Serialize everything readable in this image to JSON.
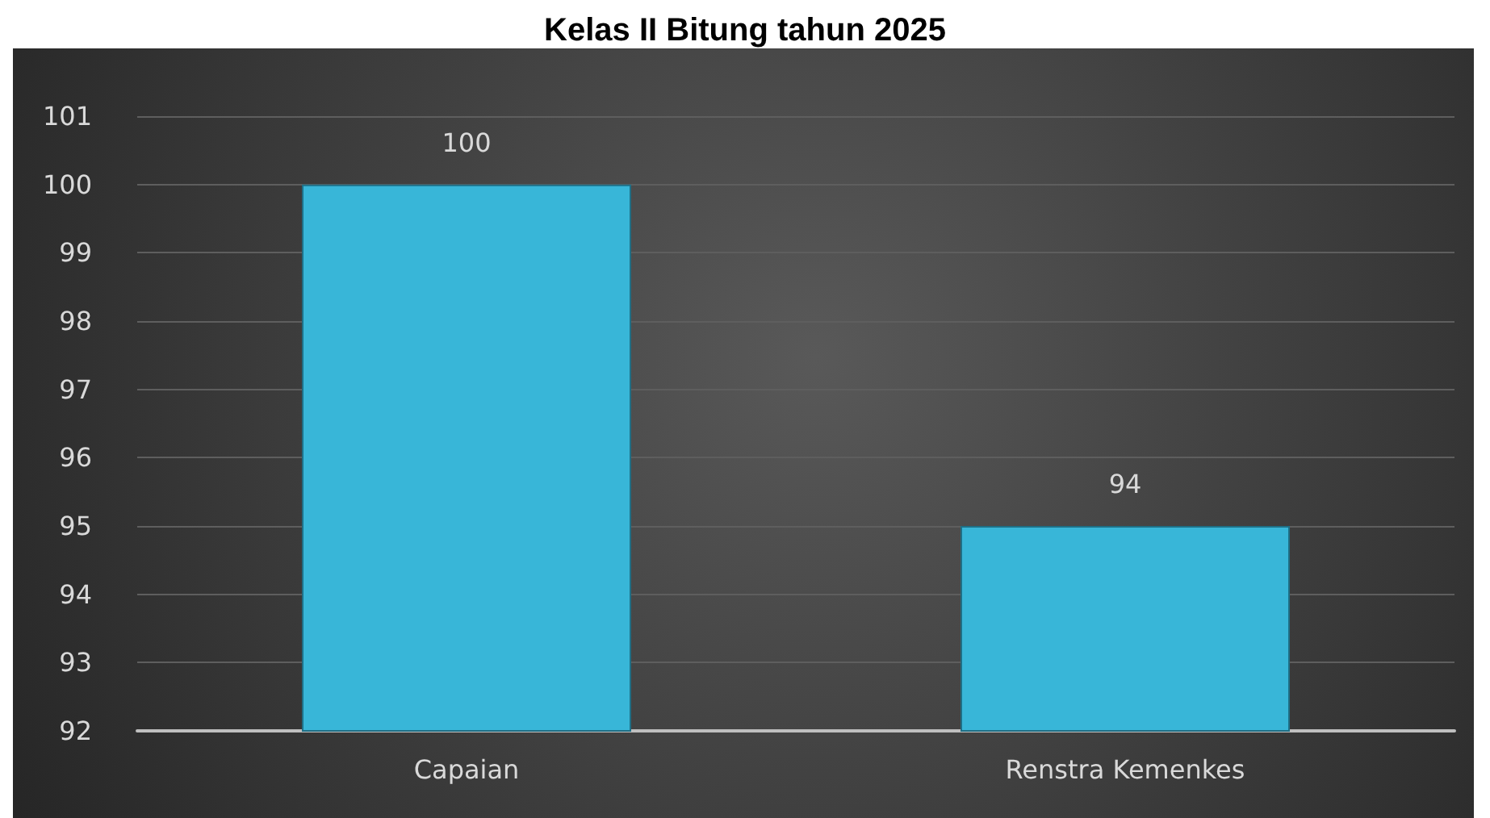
{
  "chart_data": {
    "type": "bar",
    "title": "Kelas II Bitung tahun 2025",
    "categories": [
      "Capaian",
      "Renstra Kemenkes"
    ],
    "values": [
      100,
      95
    ],
    "value_labels": [
      "100",
      null
    ],
    "color": "#38b6d8",
    "annotations": [
      {
        "text": "94",
        "x": "Renstra Kemenkes",
        "y": 95
      }
    ],
    "ylim": [
      92,
      101
    ],
    "yticks": [
      92,
      93,
      94,
      95,
      96,
      97,
      98,
      99,
      100,
      101
    ],
    "grid": "y"
  }
}
